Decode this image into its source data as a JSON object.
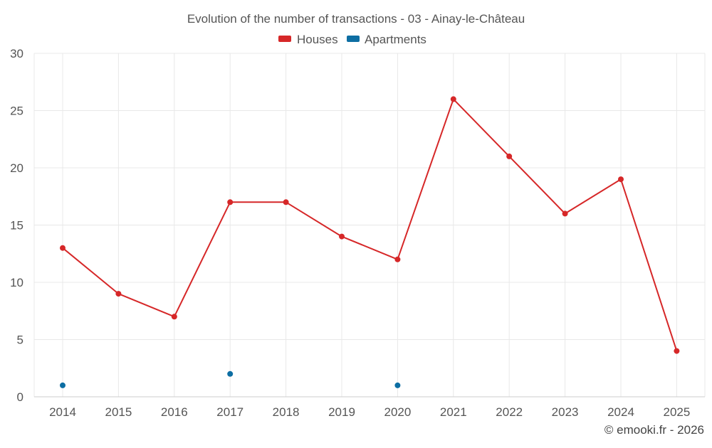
{
  "chart_data": {
    "type": "line",
    "title": "Evolution of the number of transactions - 03 - Ainay-le-Château",
    "categories": [
      "2014",
      "2015",
      "2016",
      "2017",
      "2018",
      "2019",
      "2020",
      "2021",
      "2022",
      "2023",
      "2024",
      "2025"
    ],
    "series": [
      {
        "name": "Houses",
        "color": "#d62728",
        "values": [
          13,
          9,
          7,
          17,
          17,
          14,
          12,
          26,
          21,
          16,
          19,
          4
        ],
        "show_line": true
      },
      {
        "name": "Apartments",
        "color": "#0d6ea3",
        "values": [
          1,
          null,
          null,
          2,
          null,
          null,
          1,
          null,
          null,
          null,
          null,
          null
        ],
        "show_line": false
      }
    ],
    "ylim": [
      0,
      30
    ],
    "yticks": [
      0,
      5,
      10,
      15,
      20,
      25,
      30
    ],
    "grid": true,
    "legend_position": "top-center",
    "xlabel": "",
    "ylabel": ""
  },
  "credit": "© emooki.fr - 2026"
}
